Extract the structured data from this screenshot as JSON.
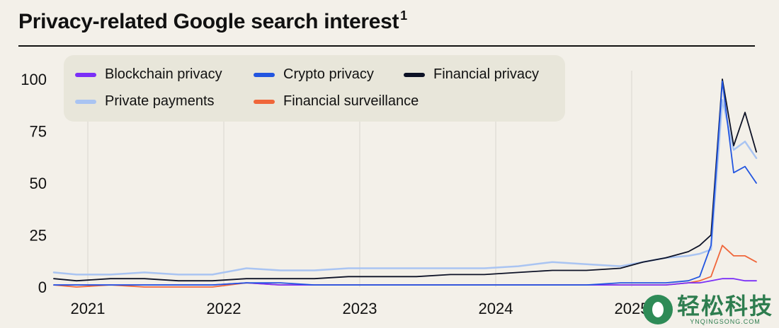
{
  "header": {
    "title": "Privacy-related Google search interest",
    "footnote_marker": "1"
  },
  "colors": {
    "background": "#f3f0e9",
    "grid": "#d9d6ce",
    "legend_bg": "#e8e6da",
    "blockchain_privacy": "#7b2ff7",
    "crypto_privacy": "#2255e0",
    "financial_privacy": "#0d1226",
    "private_payments": "#a9c4f2",
    "financial_surveillance": "#f0663a"
  },
  "watermark": {
    "name": "轻松科技",
    "site": "YNQINGSONG.COM"
  },
  "chart_data": {
    "type": "line",
    "title": "Privacy-related Google search interest",
    "xlabel": "",
    "ylabel": "",
    "x_ticks": [
      "2021",
      "2022",
      "2023",
      "2024",
      "2025"
    ],
    "xlim": [
      "2020-10",
      "2025-12"
    ],
    "ylim": [
      0,
      100
    ],
    "y_ticks": [
      0,
      25,
      50,
      75,
      100
    ],
    "grid": "vertical at year starts",
    "legend": "top-left, two rows",
    "x": [
      "2020-10",
      "2020-12",
      "2021-03",
      "2021-06",
      "2021-09",
      "2021-12",
      "2022-03",
      "2022-06",
      "2022-09",
      "2022-12",
      "2023-03",
      "2023-06",
      "2023-09",
      "2023-12",
      "2024-03",
      "2024-06",
      "2024-09",
      "2024-12",
      "2025-02",
      "2025-04",
      "2025-06",
      "2025-07",
      "2025-08",
      "2025-09",
      "2025-10",
      "2025-11",
      "2025-12"
    ],
    "series": [
      {
        "name": "Blockchain privacy",
        "color_key": "blockchain_privacy",
        "values": [
          1,
          1,
          1,
          1,
          1,
          1,
          2,
          1,
          1,
          1,
          1,
          1,
          1,
          1,
          1,
          1,
          1,
          1,
          1,
          1,
          2,
          2,
          3,
          4,
          4,
          3,
          3
        ]
      },
      {
        "name": "Crypto privacy",
        "color_key": "crypto_privacy",
        "values": [
          1,
          1,
          1,
          1,
          1,
          1,
          2,
          2,
          1,
          1,
          1,
          1,
          1,
          1,
          1,
          1,
          1,
          2,
          2,
          2,
          3,
          5,
          20,
          99,
          55,
          58,
          50
        ]
      },
      {
        "name": "Financial privacy",
        "color_key": "financial_privacy",
        "values": [
          4,
          3,
          4,
          4,
          3,
          3,
          4,
          4,
          4,
          5,
          5,
          5,
          6,
          6,
          7,
          8,
          8,
          9,
          12,
          14,
          17,
          20,
          25,
          100,
          68,
          84,
          65
        ]
      },
      {
        "name": "Private payments",
        "color_key": "private_payments",
        "values": [
          7,
          6,
          6,
          7,
          6,
          6,
          9,
          8,
          8,
          9,
          9,
          9,
          9,
          9,
          10,
          12,
          11,
          10,
          12,
          14,
          15,
          16,
          18,
          90,
          66,
          70,
          62
        ]
      },
      {
        "name": "Financial surveillance",
        "color_key": "financial_surveillance",
        "values": [
          1,
          0,
          1,
          0,
          0,
          0,
          2,
          1,
          1,
          1,
          1,
          1,
          1,
          1,
          1,
          1,
          1,
          1,
          1,
          1,
          2,
          3,
          5,
          20,
          15,
          15,
          12
        ]
      }
    ]
  }
}
